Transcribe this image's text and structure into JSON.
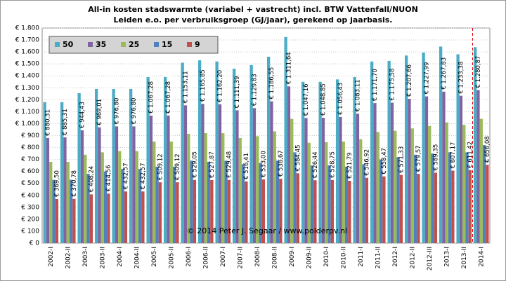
{
  "chart_data": {
    "type": "bar",
    "title": "All-in kosten stadswarmte (variabel + vastrecht) incl. BTW Vattenfall/NUON",
    "subtitle": "Leiden e.o. per verbruiksgroep (GJ/jaar), gerekend op jaarbasis.",
    "annotations": [
      "© 2014 Peter J. Segaar / www.polderpv.nl"
    ],
    "categories": [
      "2002-I",
      "2002-II",
      "2003-I",
      "2003-II",
      "2004-I",
      "2004-II",
      "2005-I",
      "2005-II",
      "2006-I",
      "2006-II",
      "2007-I",
      "2007-II",
      "2008-I",
      "2008-II",
      "2009-I",
      "2009-II",
      "2010-I",
      "2010-II",
      "2011-I",
      "2011-II",
      "2012-I",
      "2012-II",
      "2012-III",
      "2013-I",
      "2013-II",
      "2014-I"
    ],
    "series": [
      {
        "name": "50",
        "color": "#4bacc6",
        "values": [
          1180,
          1180,
          1255,
          1290,
          1290,
          1290,
          1390,
          1390,
          1510,
          1530,
          1520,
          1460,
          1490,
          1560,
          1725,
          1350,
          1350,
          1370,
          1390,
          1520,
          1525,
          1570,
          1595,
          1645,
          1580,
          1640
        ]
      },
      {
        "name": "35",
        "color": "#8064a2",
        "values": [
          880.31,
          885.31,
          944.43,
          969.01,
          976.8,
          976.8,
          1067.28,
          1067.28,
          1153.11,
          1165.85,
          1162.2,
          1111.39,
          1129.83,
          1186.55,
          1311.64,
          1047.16,
          1048.85,
          1056.43,
          1083.11,
          1171.7,
          1175.58,
          1207.66,
          1227.99,
          1267.83,
          1233.38,
          1280.87
        ],
        "value_labels": [
          "€ 880,31",
          "€ 885,31",
          "€ 944,43",
          "€ 969,01",
          "€ 976,80",
          "€ 976,80",
          "€ 1.067,28",
          "€ 1.067,28",
          "€ 1.153,11",
          "€ 1.165,85",
          "€ 1.162,20",
          "€ 1.111,39",
          "€ 1.129,83",
          "€ 1.186,55",
          "€ 1.311,64",
          "€ 1.047,16",
          "€ 1.048,85",
          "€ 1.056,43",
          "€ 1.083,11",
          "€ 1.171,70",
          "€ 1.175,58",
          "€ 1.207,66",
          "€ 1.227,99",
          "€ 1.267,83",
          "€ 1.233,38",
          "€ 1.280,87"
        ]
      },
      {
        "name": "25",
        "color": "#9bbb59",
        "values": [
          680,
          680,
          740,
          760,
          770,
          770,
          850,
          850,
          915,
          920,
          920,
          880,
          895,
          935,
          1040,
          840,
          845,
          850,
          870,
          930,
          940,
          960,
          980,
          1010,
          990,
          1040
        ]
      },
      {
        "name": "15",
        "color": "#4f81bd",
        "values": [
          530,
          530,
          580,
          600,
          620,
          620,
          640,
          640,
          690,
          680,
          690,
          660,
          670,
          690,
          760,
          650,
          650,
          640,
          660,
          700,
          720,
          740,
          750,
          760,
          760,
          820
        ]
      },
      {
        "name": "9",
        "color": "#c0504d",
        "values": [
          369.5,
          370.78,
          408.24,
          414.56,
          432.57,
          432.57,
          509.12,
          509.12,
          529.05,
          527.87,
          529.48,
          516.41,
          533.0,
          538.67,
          584.45,
          526.44,
          528.75,
          521.79,
          546.92,
          558.47,
          571.33,
          579.57,
          589.35,
          607.17,
          611.42,
          656.08
        ],
        "value_labels": [
          "€ 369,50",
          "€ 370,78",
          "€ 408,24",
          "€ 414,56",
          "€ 432,57",
          "€ 432,57",
          "€ 509,12",
          "€ 509,12",
          "€ 529,05",
          "€ 527,87",
          "€ 529,48",
          "€ 516,41",
          "€ 533,00",
          "€ 538,67",
          "€ 584,45",
          "€ 526,44",
          "€ 528,75",
          "€ 521,79",
          "€ 546,92",
          "€ 558,47",
          "€ 571,33",
          "€ 579,57",
          "€ 589,35",
          "€ 607,17",
          "€ 611,42",
          "€ 656,08"
        ]
      }
    ],
    "ylim": [
      0,
      1800
    ],
    "yticks": [
      {
        "value": 0,
        "label": "€ 0"
      },
      {
        "value": 100,
        "label": "€ 100"
      },
      {
        "value": 200,
        "label": "€ 200"
      },
      {
        "value": 300,
        "label": "€ 300"
      },
      {
        "value": 400,
        "label": "€ 400"
      },
      {
        "value": 500,
        "label": "€ 500"
      },
      {
        "value": 600,
        "label": "€ 600"
      },
      {
        "value": 700,
        "label": "€ 700"
      },
      {
        "value": 800,
        "label": "€ 800"
      },
      {
        "value": 900,
        "label": "€ 900"
      },
      {
        "value": 1000,
        "label": "€ 1.000"
      },
      {
        "value": 1100,
        "label": "€ 1.100"
      },
      {
        "value": 1200,
        "label": "€ 1.200"
      },
      {
        "value": 1300,
        "label": "€ 1.300"
      },
      {
        "value": 1400,
        "label": "€ 1.400"
      },
      {
        "value": 1500,
        "label": "€ 1.500"
      },
      {
        "value": 1600,
        "label": "€ 1.600"
      },
      {
        "value": 1700,
        "label": "€ 1.700"
      },
      {
        "value": 1800,
        "label": "€ 1.800"
      }
    ],
    "grid": true,
    "legend": "top-left"
  }
}
